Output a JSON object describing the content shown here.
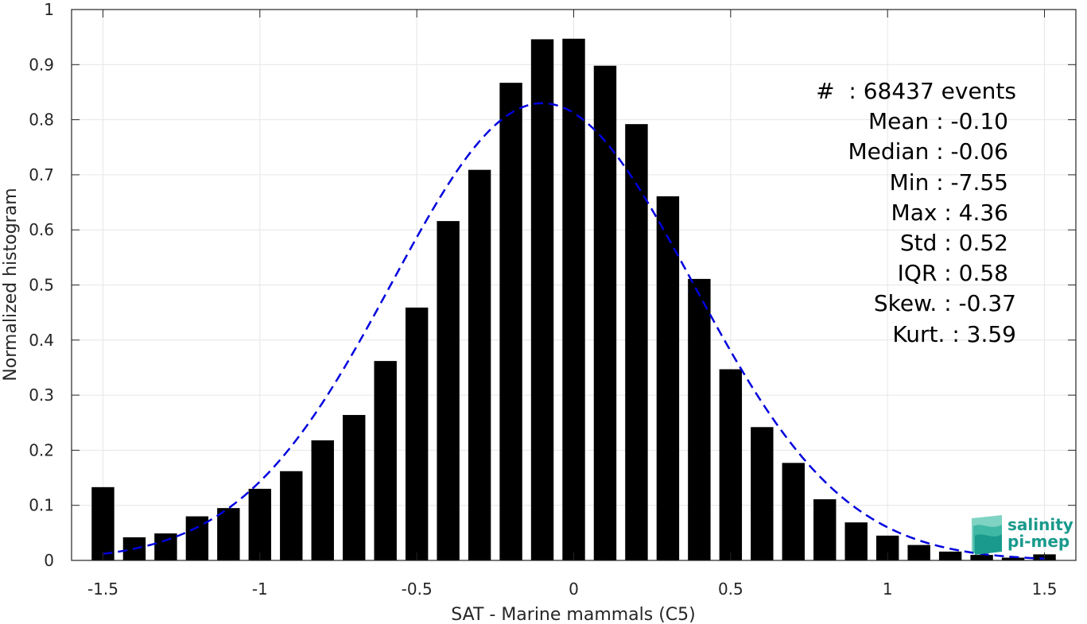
{
  "chart_data": {
    "type": "bar",
    "xlabel": "SAT - Marine mammals (C5)",
    "ylabel": "Normalized histogram",
    "xlim": [
      -1.6,
      1.6
    ],
    "ylim": [
      0,
      1
    ],
    "xticks": [
      -1.5,
      -1,
      -0.5,
      0,
      0.5,
      1,
      1.5
    ],
    "xtick_labels": [
      "-1.5",
      "-1",
      "-0.5",
      "0",
      "0.5",
      "1",
      "1.5"
    ],
    "yticks": [
      0,
      0.1,
      0.2,
      0.3,
      0.4,
      0.5,
      0.6,
      0.7,
      0.8,
      0.9,
      1
    ],
    "ytick_labels": [
      "0",
      "0.1",
      "0.2",
      "0.3",
      "0.4",
      "0.5",
      "0.6",
      "0.7",
      "0.8",
      "0.9",
      "1"
    ],
    "grid": true,
    "bar_color": "#000000",
    "bins": [
      -1.5,
      -1.4,
      -1.3,
      -1.2,
      -1.1,
      -1.0,
      -0.9,
      -0.8,
      -0.7,
      -0.6,
      -0.5,
      -0.4,
      -0.3,
      -0.2,
      -0.1,
      0.0,
      0.1,
      0.2,
      0.3,
      0.4,
      0.5,
      0.6,
      0.7,
      0.8,
      0.9,
      1.0,
      1.1,
      1.2,
      1.3,
      1.4,
      1.5
    ],
    "values": [
      0.133,
      0.042,
      0.049,
      0.08,
      0.095,
      0.13,
      0.162,
      0.218,
      0.264,
      0.362,
      0.459,
      0.616,
      0.709,
      0.867,
      0.946,
      0.947,
      0.898,
      0.792,
      0.661,
      0.511,
      0.347,
      0.242,
      0.177,
      0.111,
      0.069,
      0.045,
      0.028,
      0.016,
      0.01,
      0.005,
      0.011
    ],
    "fit_curve": {
      "type": "normal",
      "mean": -0.1,
      "std": 0.48,
      "peak": 0.83,
      "color": "#0000dd",
      "style": "dashed"
    },
    "stats": [
      "#  : 68437 events",
      "Mean : -0.10",
      "Median : -0.06",
      "Min : -7.55",
      "Max : 4.36",
      "Std : 0.52",
      "IQR : 0.58",
      "Skew. : -0.37",
      "Kurt. : 3.59"
    ]
  },
  "logo": {
    "line1": "salinity",
    "line2": "pi-mep",
    "icon": "pi-mep-wave-logo",
    "color": "#1a9a8c"
  }
}
